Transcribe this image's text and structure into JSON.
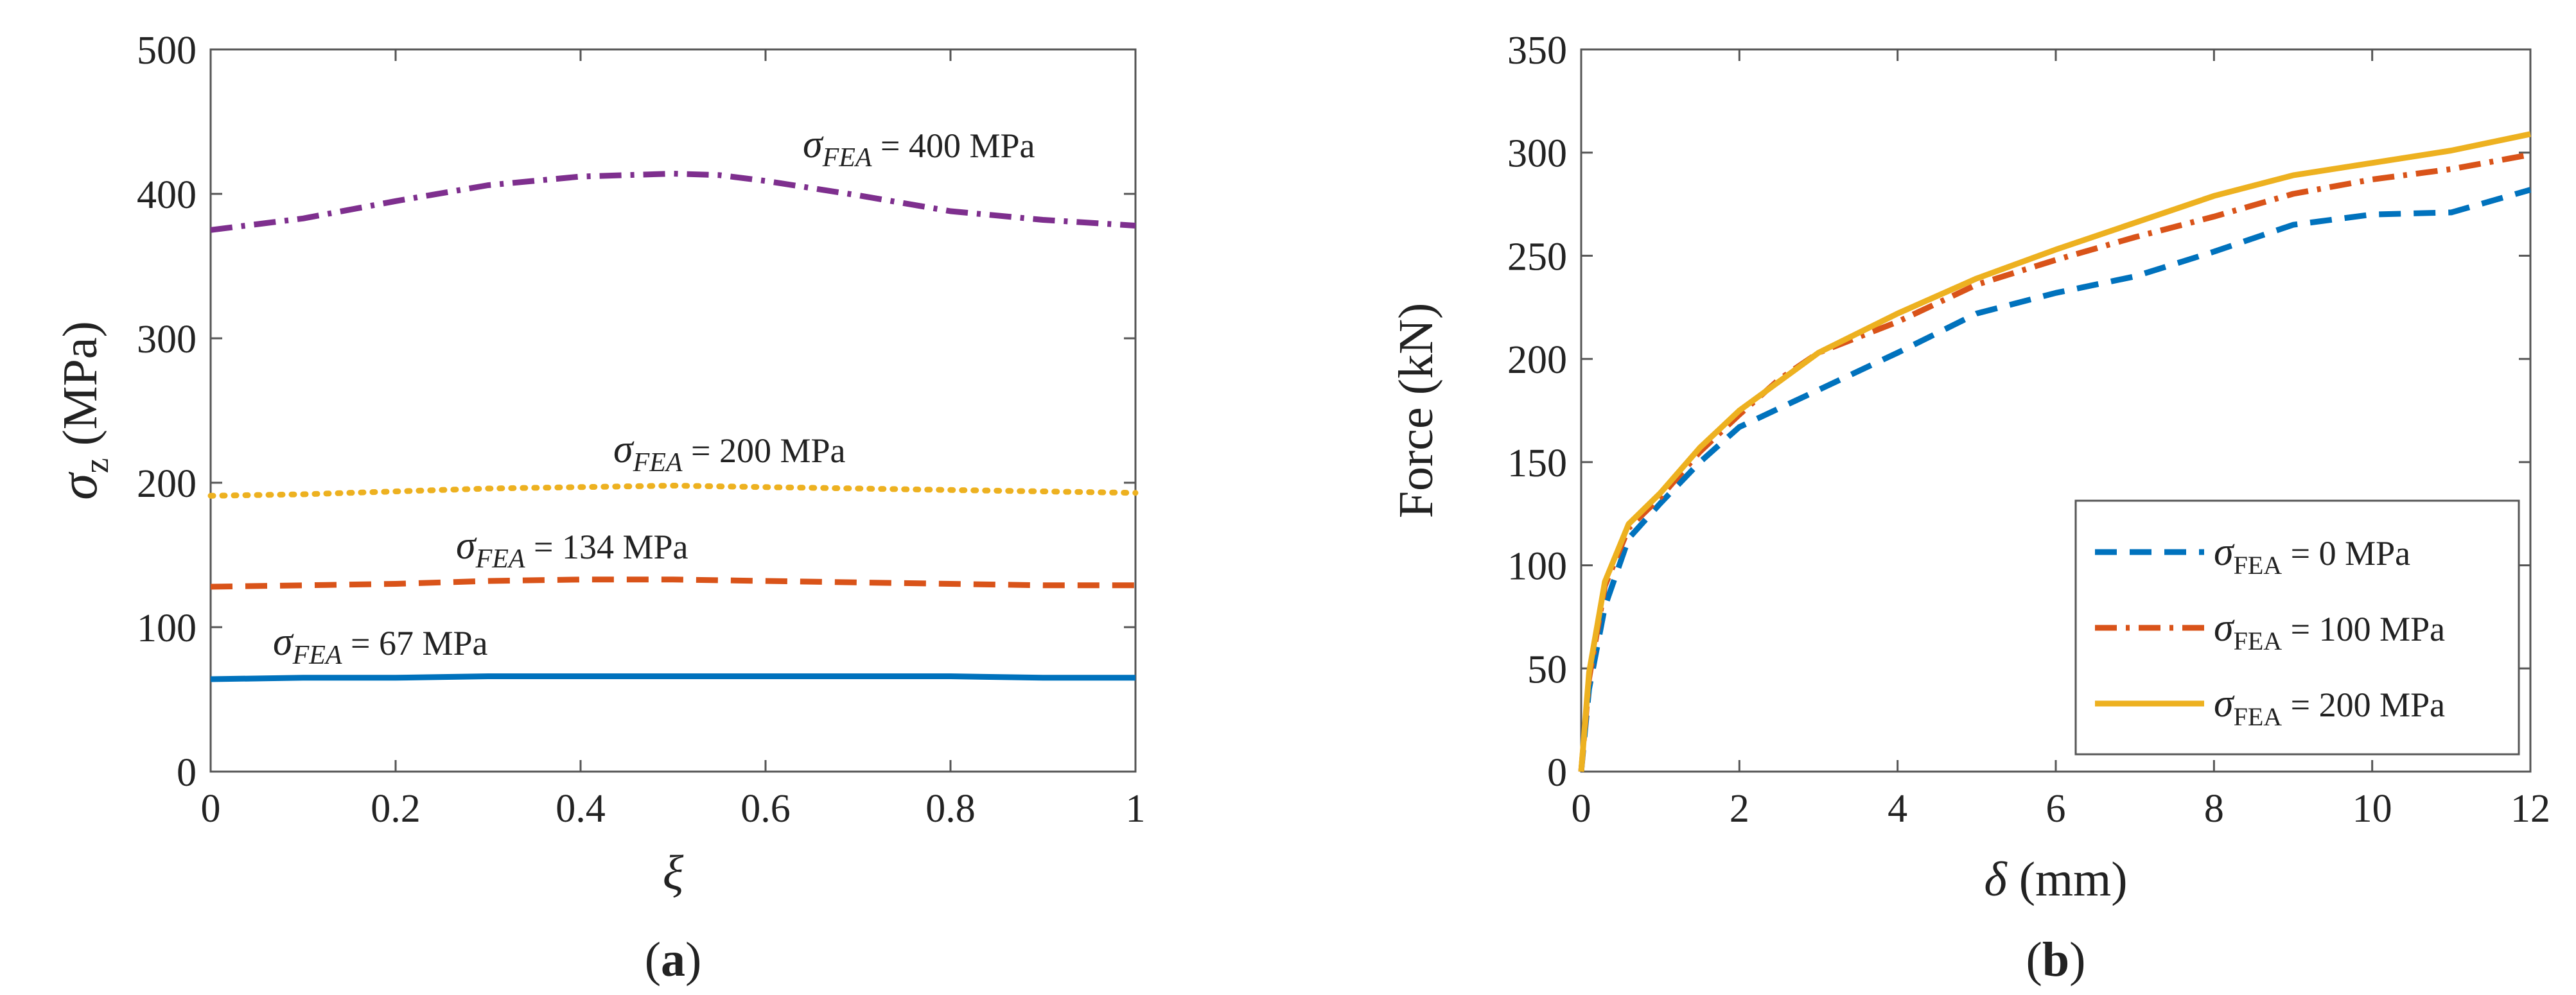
{
  "chart_data": [
    {
      "id": "a",
      "type": "line",
      "panel_label": "(a)",
      "panel_letter": "a",
      "xlabel": "ξ",
      "ylabel_main": "σ",
      "ylabel_sub": "z",
      "ylabel_unit": "(MPa)",
      "xlim": [
        0,
        1
      ],
      "ylim": [
        0,
        500
      ],
      "xticks": [
        0,
        0.2,
        0.4,
        0.6,
        0.8,
        1
      ],
      "xtick_labels": [
        "0",
        "0.2",
        "0.4",
        "0.6",
        "0.8",
        "1"
      ],
      "yticks": [
        0,
        100,
        200,
        300,
        400,
        500
      ],
      "ytick_labels": [
        "0",
        "100",
        "200",
        "300",
        "400",
        "500"
      ],
      "grid": false,
      "series": [
        {
          "name": "σFEA = 400 MPa",
          "annotation_symbol": "σ",
          "annotation_sub": "FEA",
          "annotation_rest": " = 400 MPa",
          "color": "#7E2F8E",
          "style": "dashdot",
          "x": [
            0,
            0.1,
            0.2,
            0.3,
            0.4,
            0.5,
            0.55,
            0.6,
            0.7,
            0.8,
            0.9,
            1.0
          ],
          "y": [
            375,
            383,
            395,
            406,
            412,
            414,
            413,
            409,
            399,
            388,
            382,
            378
          ]
        },
        {
          "name": "σFEA = 200 MPa",
          "annotation_symbol": "σ",
          "annotation_sub": "FEA",
          "annotation_rest": " = 200 MPa",
          "color": "#EDB120",
          "style": "dotted",
          "x": [
            0,
            0.1,
            0.2,
            0.3,
            0.4,
            0.5,
            0.6,
            0.7,
            0.8,
            0.9,
            1.0
          ],
          "y": [
            191,
            192,
            194,
            196,
            197,
            198,
            197,
            196,
            195,
            194,
            193
          ]
        },
        {
          "name": "σFEA = 134 MPa",
          "annotation_symbol": "σ",
          "annotation_sub": "FEA",
          "annotation_rest": " = 134 MPa",
          "color": "#D95319",
          "style": "dashed",
          "x": [
            0,
            0.1,
            0.2,
            0.3,
            0.4,
            0.5,
            0.6,
            0.7,
            0.8,
            0.9,
            1.0
          ],
          "y": [
            128,
            129,
            130,
            132,
            133,
            133,
            132,
            131,
            130,
            129,
            129
          ]
        },
        {
          "name": "σFEA = 67 MPa",
          "annotation_symbol": "σ",
          "annotation_sub": "FEA",
          "annotation_rest": " = 67 MPa",
          "color": "#0072BD",
          "style": "solid",
          "x": [
            0,
            0.1,
            0.2,
            0.3,
            0.4,
            0.5,
            0.6,
            0.7,
            0.8,
            0.9,
            1.0
          ],
          "y": [
            64,
            65,
            65,
            66,
            66,
            66,
            66,
            66,
            66,
            65,
            65
          ]
        }
      ]
    },
    {
      "id": "b",
      "type": "line",
      "panel_label": "(b)",
      "panel_letter": "b",
      "xlabel_main": "δ",
      "xlabel_unit": " (mm)",
      "ylabel": "Force (kN)",
      "xlim": [
        0,
        12
      ],
      "ylim": [
        0,
        350
      ],
      "xticks": [
        0,
        2,
        4,
        6,
        8,
        10,
        12
      ],
      "xtick_labels": [
        "0",
        "2",
        "4",
        "6",
        "8",
        "10",
        "12"
      ],
      "yticks": [
        0,
        50,
        100,
        150,
        200,
        250,
        300,
        350
      ],
      "ytick_labels": [
        "0",
        "50",
        "100",
        "150",
        "200",
        "250",
        "300",
        "350"
      ],
      "grid": false,
      "legend_position": "bottom-right",
      "series": [
        {
          "name": "σFEA = 0 MPa",
          "legend_symbol": "σ",
          "legend_sub": "FEA",
          "legend_rest": " = 0 MPa",
          "color": "#0072BD",
          "style": "dashed",
          "x": [
            0,
            0.1,
            0.3,
            0.6,
            1.0,
            1.5,
            2.0,
            3.0,
            4.0,
            5.0,
            6.0,
            7.0,
            8.0,
            9.0,
            10.0,
            11.0,
            12.0
          ],
          "y": [
            0,
            40,
            80,
            113,
            130,
            150,
            167,
            185,
            203,
            222,
            232,
            240,
            252,
            265,
            270,
            271,
            282
          ]
        },
        {
          "name": "σFEA = 100 MPa",
          "legend_symbol": "σ",
          "legend_sub": "FEA",
          "legend_rest": " = 100 MPa",
          "color": "#D95319",
          "style": "dashdot",
          "x": [
            0,
            0.1,
            0.3,
            0.6,
            1.0,
            1.5,
            2.0,
            2.5,
            3.0,
            4.0,
            5.0,
            6.0,
            7.0,
            8.0,
            9.0,
            10.0,
            11.0,
            12.0
          ],
          "y": [
            0,
            45,
            90,
            118,
            133,
            155,
            173,
            190,
            203,
            218,
            236,
            248,
            259,
            269,
            280,
            287,
            292,
            299
          ]
        },
        {
          "name": "σFEA = 200 MPa",
          "legend_symbol": "σ",
          "legend_sub": "FEA",
          "legend_rest": " = 200 MPa",
          "color": "#EDB120",
          "style": "solid",
          "x": [
            0,
            0.1,
            0.3,
            0.6,
            1.0,
            1.5,
            2.0,
            3.0,
            4.0,
            5.0,
            6.0,
            7.0,
            8.0,
            9.0,
            10.0,
            11.0,
            12.0
          ],
          "y": [
            0,
            48,
            92,
            120,
            135,
            157,
            175,
            203,
            222,
            239,
            253,
            266,
            279,
            289,
            295,
            301,
            309
          ]
        }
      ]
    }
  ]
}
